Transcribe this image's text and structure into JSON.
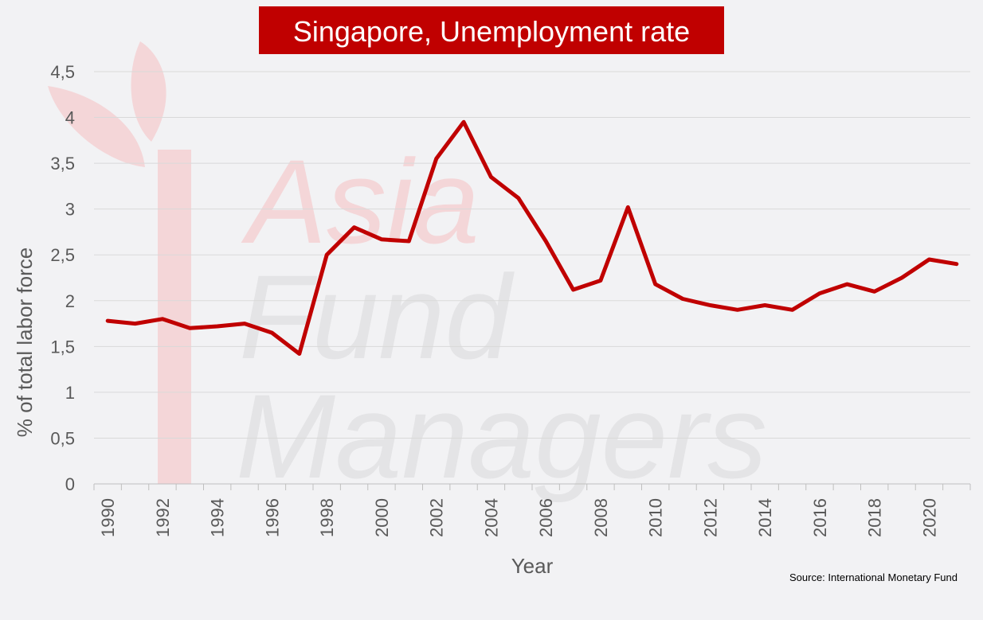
{
  "chart_data": {
    "type": "line",
    "title": "Singapore, Unemployment rate",
    "xlabel": "Year",
    "ylabel": "% of total labor force",
    "source": "Source: International Monetary Fund",
    "watermark": {
      "words": [
        "Asia",
        "Fund",
        "Managers"
      ]
    },
    "ylim": [
      0,
      4.5
    ],
    "yticks": [
      {
        "value": 0,
        "label": "0"
      },
      {
        "value": 0.5,
        "label": "0,5"
      },
      {
        "value": 1,
        "label": "1"
      },
      {
        "value": 1.5,
        "label": "1,5"
      },
      {
        "value": 2,
        "label": "2"
      },
      {
        "value": 2.5,
        "label": "2,5"
      },
      {
        "value": 3,
        "label": "3"
      },
      {
        "value": 3.5,
        "label": "3,5"
      },
      {
        "value": 4,
        "label": "4"
      },
      {
        "value": 4.5,
        "label": "4,5"
      }
    ],
    "xticks": [
      "1990",
      "1992",
      "1994",
      "1996",
      "1998",
      "2000",
      "2002",
      "2004",
      "2006",
      "2008",
      "2010",
      "2012",
      "2014",
      "2016",
      "2018",
      "2020"
    ],
    "grid": true,
    "colors": {
      "line": "#c00000",
      "title_bg": "#c00000",
      "grid": "#d9d9d9",
      "background": "#f2f2f4"
    },
    "series": [
      {
        "x": [
          1990,
          1991,
          1992,
          1993,
          1994,
          1995,
          1996,
          1997,
          1998,
          1999,
          2000,
          2001,
          2002,
          2003,
          2004,
          2005,
          2006,
          2007,
          2008,
          2009,
          2010,
          2011,
          2012,
          2013,
          2014,
          2015,
          2016,
          2017,
          2018,
          2019,
          2020,
          2021
        ],
        "values": [
          1.78,
          1.75,
          1.8,
          1.7,
          1.72,
          1.75,
          1.65,
          1.42,
          2.5,
          2.8,
          2.67,
          2.65,
          3.55,
          3.95,
          3.35,
          3.12,
          2.65,
          2.12,
          2.22,
          3.02,
          2.18,
          2.02,
          1.95,
          1.9,
          1.95,
          1.9,
          2.08,
          2.18,
          2.1,
          2.25,
          2.45,
          2.4
        ]
      }
    ]
  }
}
